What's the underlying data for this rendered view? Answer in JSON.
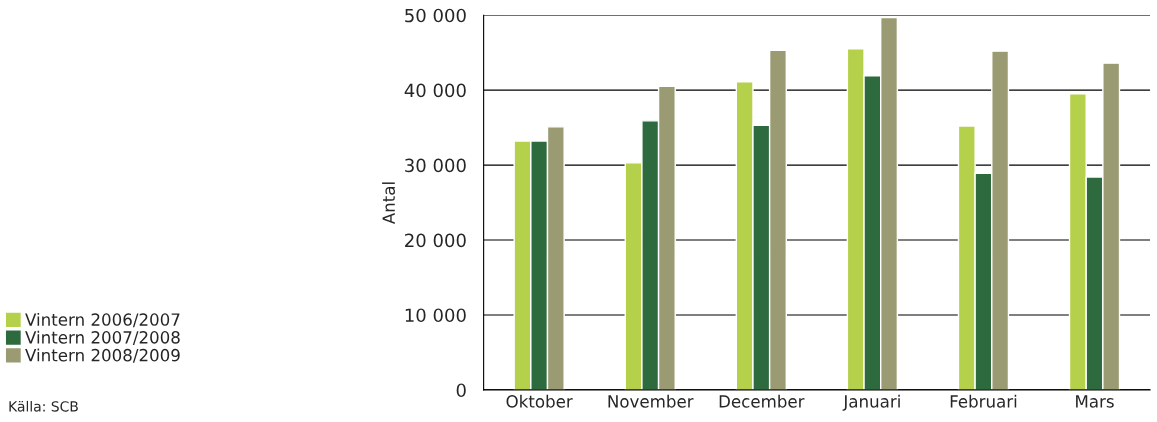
{
  "chart_data": {
    "type": "bar",
    "ylabel": "Antal",
    "categories": [
      "Oktober",
      "November",
      "December",
      "Januari",
      "Februari",
      "Mars"
    ],
    "series": [
      {
        "name": "Vintern 2006/2007",
        "color": "#b5d14b",
        "values": [
          33200,
          30300,
          41100,
          45500,
          35200,
          39500
        ]
      },
      {
        "name": "Vintern 2007/2008",
        "color": "#2d6b3f",
        "values": [
          33200,
          35900,
          35300,
          41900,
          28900,
          28400
        ]
      },
      {
        "name": "Vintern 2008/2009",
        "color": "#9a9b72",
        "values": [
          35100,
          40500,
          45300,
          49700,
          45200,
          43600
        ]
      }
    ],
    "ylim": [
      0,
      50000
    ],
    "yticks": [
      {
        "value": 0,
        "label": "0"
      },
      {
        "value": 10000,
        "label": "10 000"
      },
      {
        "value": 20000,
        "label": "20 000"
      },
      {
        "value": 30000,
        "label": "30 000"
      },
      {
        "value": 40000,
        "label": "40 000"
      },
      {
        "value": 50000,
        "label": "50 000"
      }
    ],
    "grid": "y",
    "legend": "left",
    "annotations": [
      "Källa: SCB"
    ]
  }
}
